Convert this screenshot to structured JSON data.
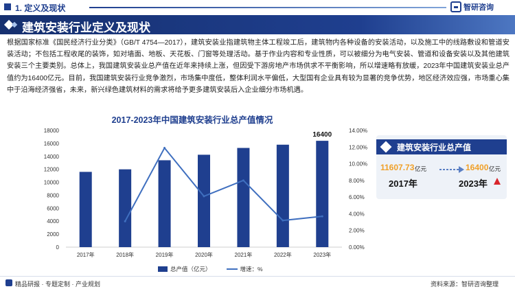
{
  "header": {
    "section_label": "1. 定义及现状",
    "brand": "智研咨询"
  },
  "title": {
    "text": "建筑安装行业定义及现状"
  },
  "intro": {
    "text": "根据国家标准《国民经济行业分类》（GB/T 4754—2017），建筑安装业指建筑物主体工程竣工后，建筑物内各种设备的安装活动，以及施工中的线路敷设和管道安装活动；不包括工程收尾的装饰，如对墙面、地板、天花板、门窗等处理活动。基于作业内容和专业性质，可以被细分为电气安装、管道和设备安装以及其他建筑安装三个主要类别。总体上，我国建筑安装业总产值在近年来持续上涨，但因受下游房地产市场供求不平衡影响，所以增速略有放缓，2023年中国建筑安装业总产值约为16400亿元。目前，我国建筑安装行业竞争激烈，市场集中度低，整体利润水平偏低，大型国有企业具有较为显著的竞争优势，地区经济效应强，市场重心集中于沿海经济强省，未来，新兴绿色建筑材料的需求将给予更多建筑安装后入企业细分市场机遇。"
  },
  "chart_data": {
    "type": "bar",
    "title": "2017-2023年中国建筑安装行业总产值情况",
    "categories": [
      "2017年",
      "2018年",
      "2019年",
      "2020年",
      "2021年",
      "2022年",
      "2023年"
    ],
    "series": [
      {
        "name": "总产值（亿元）",
        "type": "bar",
        "axis": "left",
        "values": [
          11607.73,
          12000,
          13400,
          14250,
          15300,
          15800,
          16400
        ]
      },
      {
        "name": "增速：%",
        "type": "line",
        "axis": "right",
        "values": [
          null,
          3.1,
          11.9,
          6.1,
          8.0,
          3.2,
          3.7
        ]
      }
    ],
    "y_left": {
      "min": 0,
      "max": 18000,
      "step": 2000,
      "ticks": [
        "0",
        "2000",
        "4000",
        "6000",
        "8000",
        "10000",
        "12000",
        "14000",
        "16000",
        "18000"
      ]
    },
    "y_right": {
      "min": 0,
      "max": 14,
      "step": 2,
      "ticks": [
        "0.00%",
        "2.00%",
        "4.00%",
        "6.00%",
        "8.00%",
        "10.00%",
        "12.00%",
        "14.00%"
      ]
    },
    "data_labels": [
      {
        "category": "2023年",
        "text": "16400"
      }
    ],
    "legend_position": "bottom",
    "grid": false,
    "colors": {
      "bar": "#1f3f8f",
      "line": "#3f6fbf"
    }
  },
  "card": {
    "title": "建筑安装行业总产值",
    "start_value": "11607.73",
    "start_unit": "亿元",
    "start_year": "2017年",
    "end_value": "16400",
    "end_unit": "亿元",
    "end_year": "2023年",
    "trend": "up"
  },
  "legend": {
    "bar_label": "总产值（亿元）",
    "line_label": "增速：%"
  },
  "footer": {
    "left": "精品研报 · 专题定制 · 产业规划",
    "right": "资料来源：智研咨询整理"
  }
}
